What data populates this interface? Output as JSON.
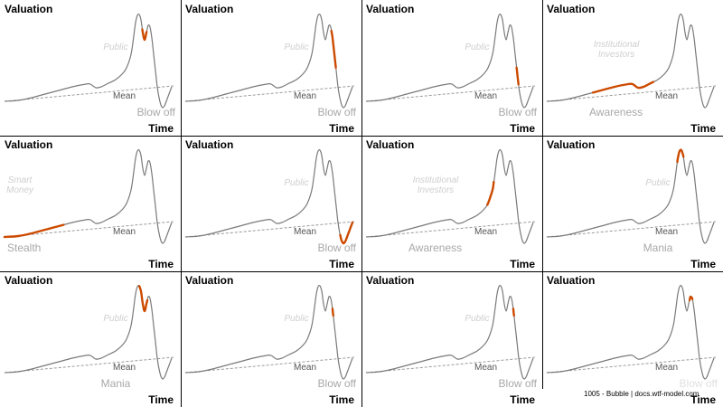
{
  "footer": "1005 - Bubble | docs.wtf-model.com",
  "labels": {
    "y_axis": "Valuation",
    "x_axis": "Time",
    "mean": "Mean"
  },
  "colors": {
    "curve": "#7a7a7a",
    "highlight": "#cc4a00",
    "mean_line": "#9a9a9a",
    "phase_text": "#a8a8a8",
    "ghost_text": "#cfcfcf",
    "text": "#000000"
  },
  "panels": [
    {
      "phase_label": "Blow off",
      "overlay_label": "Public",
      "highlight_segment": [
        0.605,
        0.66
      ]
    },
    {
      "phase_label": "Blow off",
      "overlay_label": "Public",
      "highlight_segment": [
        0.7,
        0.81
      ]
    },
    {
      "phase_label": "Blow off",
      "overlay_label": "Public",
      "highlight_segment": [
        0.81,
        0.86
      ]
    },
    {
      "phase_label": "Awareness",
      "overlay_label": "Institutional\nInvestors",
      "highlight_segment": [
        0.14,
        0.33
      ]
    },
    {
      "phase_label": "Stealth",
      "overlay_label": "Smart\nMoney",
      "highlight_segment": [
        0.0,
        0.18
      ]
    },
    {
      "phase_label": "Blow off",
      "overlay_label": "Public",
      "highlight_segment": [
        0.905,
        1.0
      ]
    },
    {
      "phase_label": "Awareness",
      "overlay_label": "Institutional\nInvestors",
      "highlight_segment": [
        0.39,
        0.46
      ]
    },
    {
      "phase_label": "Mania",
      "overlay_label": "Public",
      "highlight_segment": [
        0.52,
        0.58
      ]
    },
    {
      "phase_label": "Mania",
      "overlay_label": "Public",
      "highlight_segment": [
        0.56,
        0.67
      ]
    },
    {
      "phase_label": "Blow off",
      "overlay_label": "Public",
      "highlight_segment": [
        0.72,
        0.74
      ]
    },
    {
      "phase_label": "Blow off",
      "overlay_label": "Public",
      "highlight_segment": [
        0.72,
        0.74
      ]
    },
    {
      "phase_label": "Blow off",
      "overlay_label": "",
      "highlight_segment": [
        0.67,
        0.69
      ]
    }
  ]
}
